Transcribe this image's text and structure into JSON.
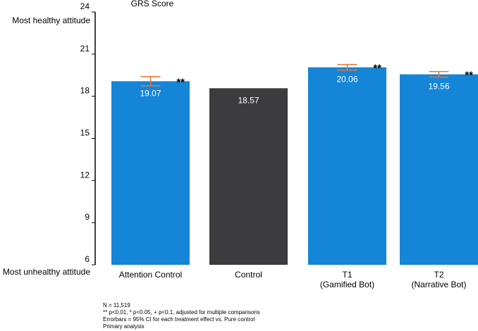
{
  "chart_data": {
    "type": "bar",
    "title": "GRS Score",
    "ylim": [
      6,
      24
    ],
    "yticks": [
      6,
      9,
      12,
      15,
      18,
      21,
      24
    ],
    "y_top_label": "Most healthy attitude",
    "y_bottom_label": "Most unhealthy attitude",
    "bars": [
      {
        "label_lines": [
          "Attention Control"
        ],
        "value": 19.07,
        "value_label": "19.07",
        "color": "#1585d8",
        "err_low": 18.74,
        "err_high": 19.4,
        "significance": "**"
      },
      {
        "label_lines": [
          "Control"
        ],
        "value": 18.57,
        "value_label": "18.57",
        "color": "#3c3c3e",
        "err_low": null,
        "err_high": null,
        "significance": ""
      },
      {
        "label_lines": [
          "T1",
          "(Gamified Bot)"
        ],
        "value": 20.06,
        "value_label": "20.06",
        "color": "#1585d8",
        "err_low": 19.86,
        "err_high": 20.26,
        "significance": "**"
      },
      {
        "label_lines": [
          "T2",
          "(Narrative Bot)"
        ],
        "value": 19.56,
        "value_label": "19.56",
        "color": "#1585d8",
        "err_low": 19.36,
        "err_high": 19.76,
        "significance": "**"
      }
    ],
    "errorbar_color": "#e8763a"
  },
  "notes": [
    "N = 11,519",
    "** p<0.01, * p<0.05, + p<0.1, adjusted for multiple comparisons",
    "Errorbars = 95% CI for each treatment effect vs. Pure control",
    "Primary analysis"
  ]
}
